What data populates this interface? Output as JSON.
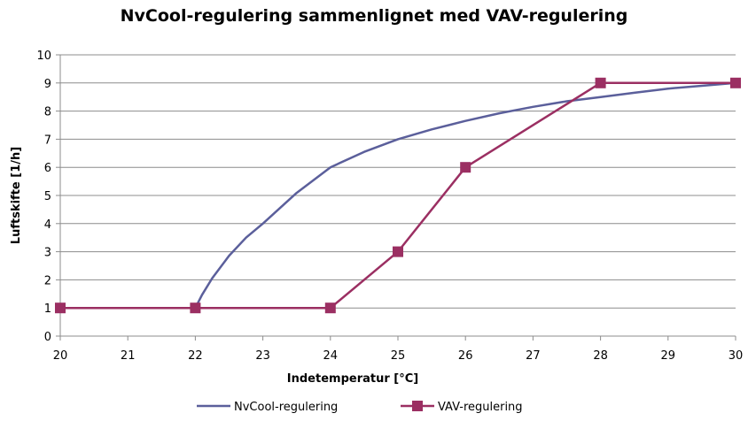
{
  "chart_data": {
    "type": "line",
    "title": "NvCool-regulering sammenlignet med VAV-regulering",
    "xlabel": "Indetemperatur [°C]",
    "ylabel": "Luftskifte [1/h]",
    "xlim": [
      20,
      30
    ],
    "ylim": [
      0,
      10
    ],
    "xticks": [
      20,
      21,
      22,
      23,
      24,
      25,
      26,
      27,
      28,
      29,
      30
    ],
    "yticks": [
      0,
      1,
      2,
      3,
      4,
      5,
      6,
      7,
      8,
      9,
      10
    ],
    "grid": "horizontal",
    "legend_position": "bottom",
    "series": [
      {
        "name": "NvCool-regulering",
        "color": "#5B5F9B",
        "marker": "none",
        "x": [
          20,
          21,
          22,
          22.1,
          22.25,
          22.5,
          22.75,
          23,
          23.5,
          24,
          24.5,
          25,
          25.5,
          26,
          26.5,
          27,
          27.5,
          28,
          28.5,
          29,
          29.5,
          30
        ],
        "y": [
          1,
          1,
          1,
          1.47,
          2.06,
          2.86,
          3.5,
          4.0,
          5.09,
          6.0,
          6.55,
          7.0,
          7.35,
          7.65,
          7.92,
          8.15,
          8.35,
          8.5,
          8.65,
          8.8,
          8.9,
          9.0
        ]
      },
      {
        "name": "VAV-regulering",
        "color": "#9B2F62",
        "marker": "square",
        "x": [
          20,
          22,
          24,
          25,
          26,
          28,
          30
        ],
        "y": [
          1,
          1,
          1,
          3,
          6,
          9,
          9
        ]
      }
    ]
  }
}
